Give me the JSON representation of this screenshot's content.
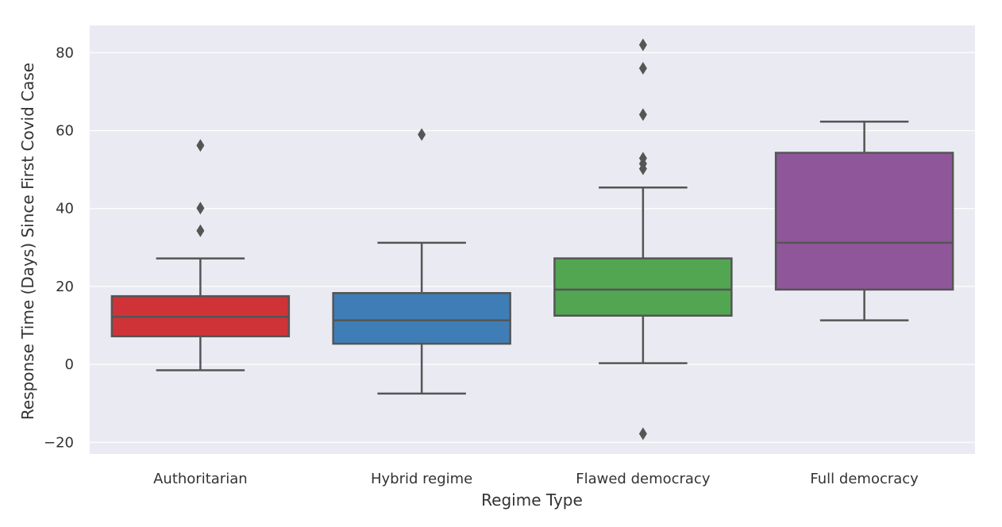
{
  "chart_data": {
    "type": "box",
    "xlabel": "Regime Type",
    "ylabel": "Response Time (Days) Since First Covid Case",
    "ylim": [
      -23,
      87
    ],
    "yticks": [
      80,
      60,
      40,
      20,
      0,
      -20
    ],
    "ytick_labels": [
      "80",
      "60",
      "40",
      "20",
      "0",
      "−20"
    ],
    "grid": true,
    "categories": [
      "Authoritarian",
      "Hybrid regime",
      "Flawed democracy",
      "Full democracy"
    ],
    "boxes": [
      {
        "category": "Authoritarian",
        "whisker_low": -1.5,
        "q1": 7.2,
        "median": 12.2,
        "q3": 17.5,
        "whisker_high": 27.2,
        "outliers": [
          56.2,
          40.1,
          34.3
        ]
      },
      {
        "category": "Hybrid regime",
        "whisker_low": -7.5,
        "q1": 5.3,
        "median": 11.3,
        "q3": 18.3,
        "whisker_high": 31.2,
        "outliers": [
          59.0
        ]
      },
      {
        "category": "Flawed democracy",
        "whisker_low": 0.3,
        "q1": 12.5,
        "median": 19.2,
        "q3": 27.2,
        "whisker_high": 45.4,
        "outliers": [
          82.0,
          76.0,
          64.1,
          52.9,
          51.5,
          50.2,
          -17.8
        ]
      },
      {
        "category": "Full democracy",
        "whisker_low": 11.3,
        "q1": 19.2,
        "median": 31.2,
        "q3": 54.3,
        "whisker_high": 62.3,
        "outliers": []
      }
    ],
    "colors": {
      "plot_background": "#eaeaf2",
      "grid": "#ffffff",
      "lines": "#555555",
      "boxes": [
        "#d03337",
        "#3f7db7",
        "#52a651",
        "#8f569a"
      ]
    }
  }
}
